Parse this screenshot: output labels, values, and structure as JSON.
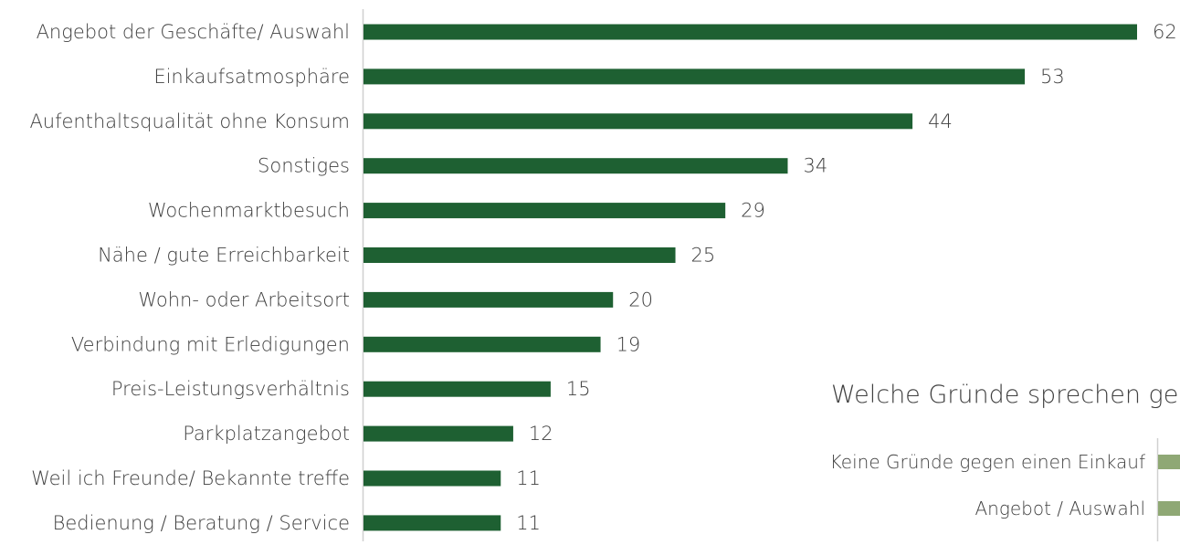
{
  "chart_data": [
    {
      "type": "bar",
      "orientation": "horizontal",
      "categories": [
        "Angebot der Geschäfte/ Auswahl",
        "Einkaufsatmosphäre",
        "Aufenthaltsqualität ohne Konsum",
        "Sonstiges",
        "Wochenmarktbesuch",
        "Nähe / gute Erreichbarkeit",
        "Wohn- oder Arbeitsort",
        "Verbindung mit Erledigungen",
        "Preis-Leistungsverhältnis",
        "Parkplatzangebot",
        "Weil ich Freunde/ Bekannte treffe",
        "Bedienung / Beratung / Service"
      ],
      "values": [
        62,
        53,
        44,
        34,
        29,
        25,
        20,
        19,
        15,
        12,
        11,
        11
      ],
      "xlim": [
        0,
        62
      ],
      "grid": false,
      "bar_color": "#1e6032",
      "data_labels": true
    },
    {
      "type": "bar",
      "orientation": "horizontal",
      "title": "Welche Gründe sprechen geg",
      "categories": [
        "Keine Gründe gegen einen Einkauf",
        "Angebot / Auswahl"
      ],
      "bar_color": "#8fa875",
      "partial": true
    }
  ],
  "colors": {
    "axis": "#d0d0d0",
    "text": "#404040"
  }
}
